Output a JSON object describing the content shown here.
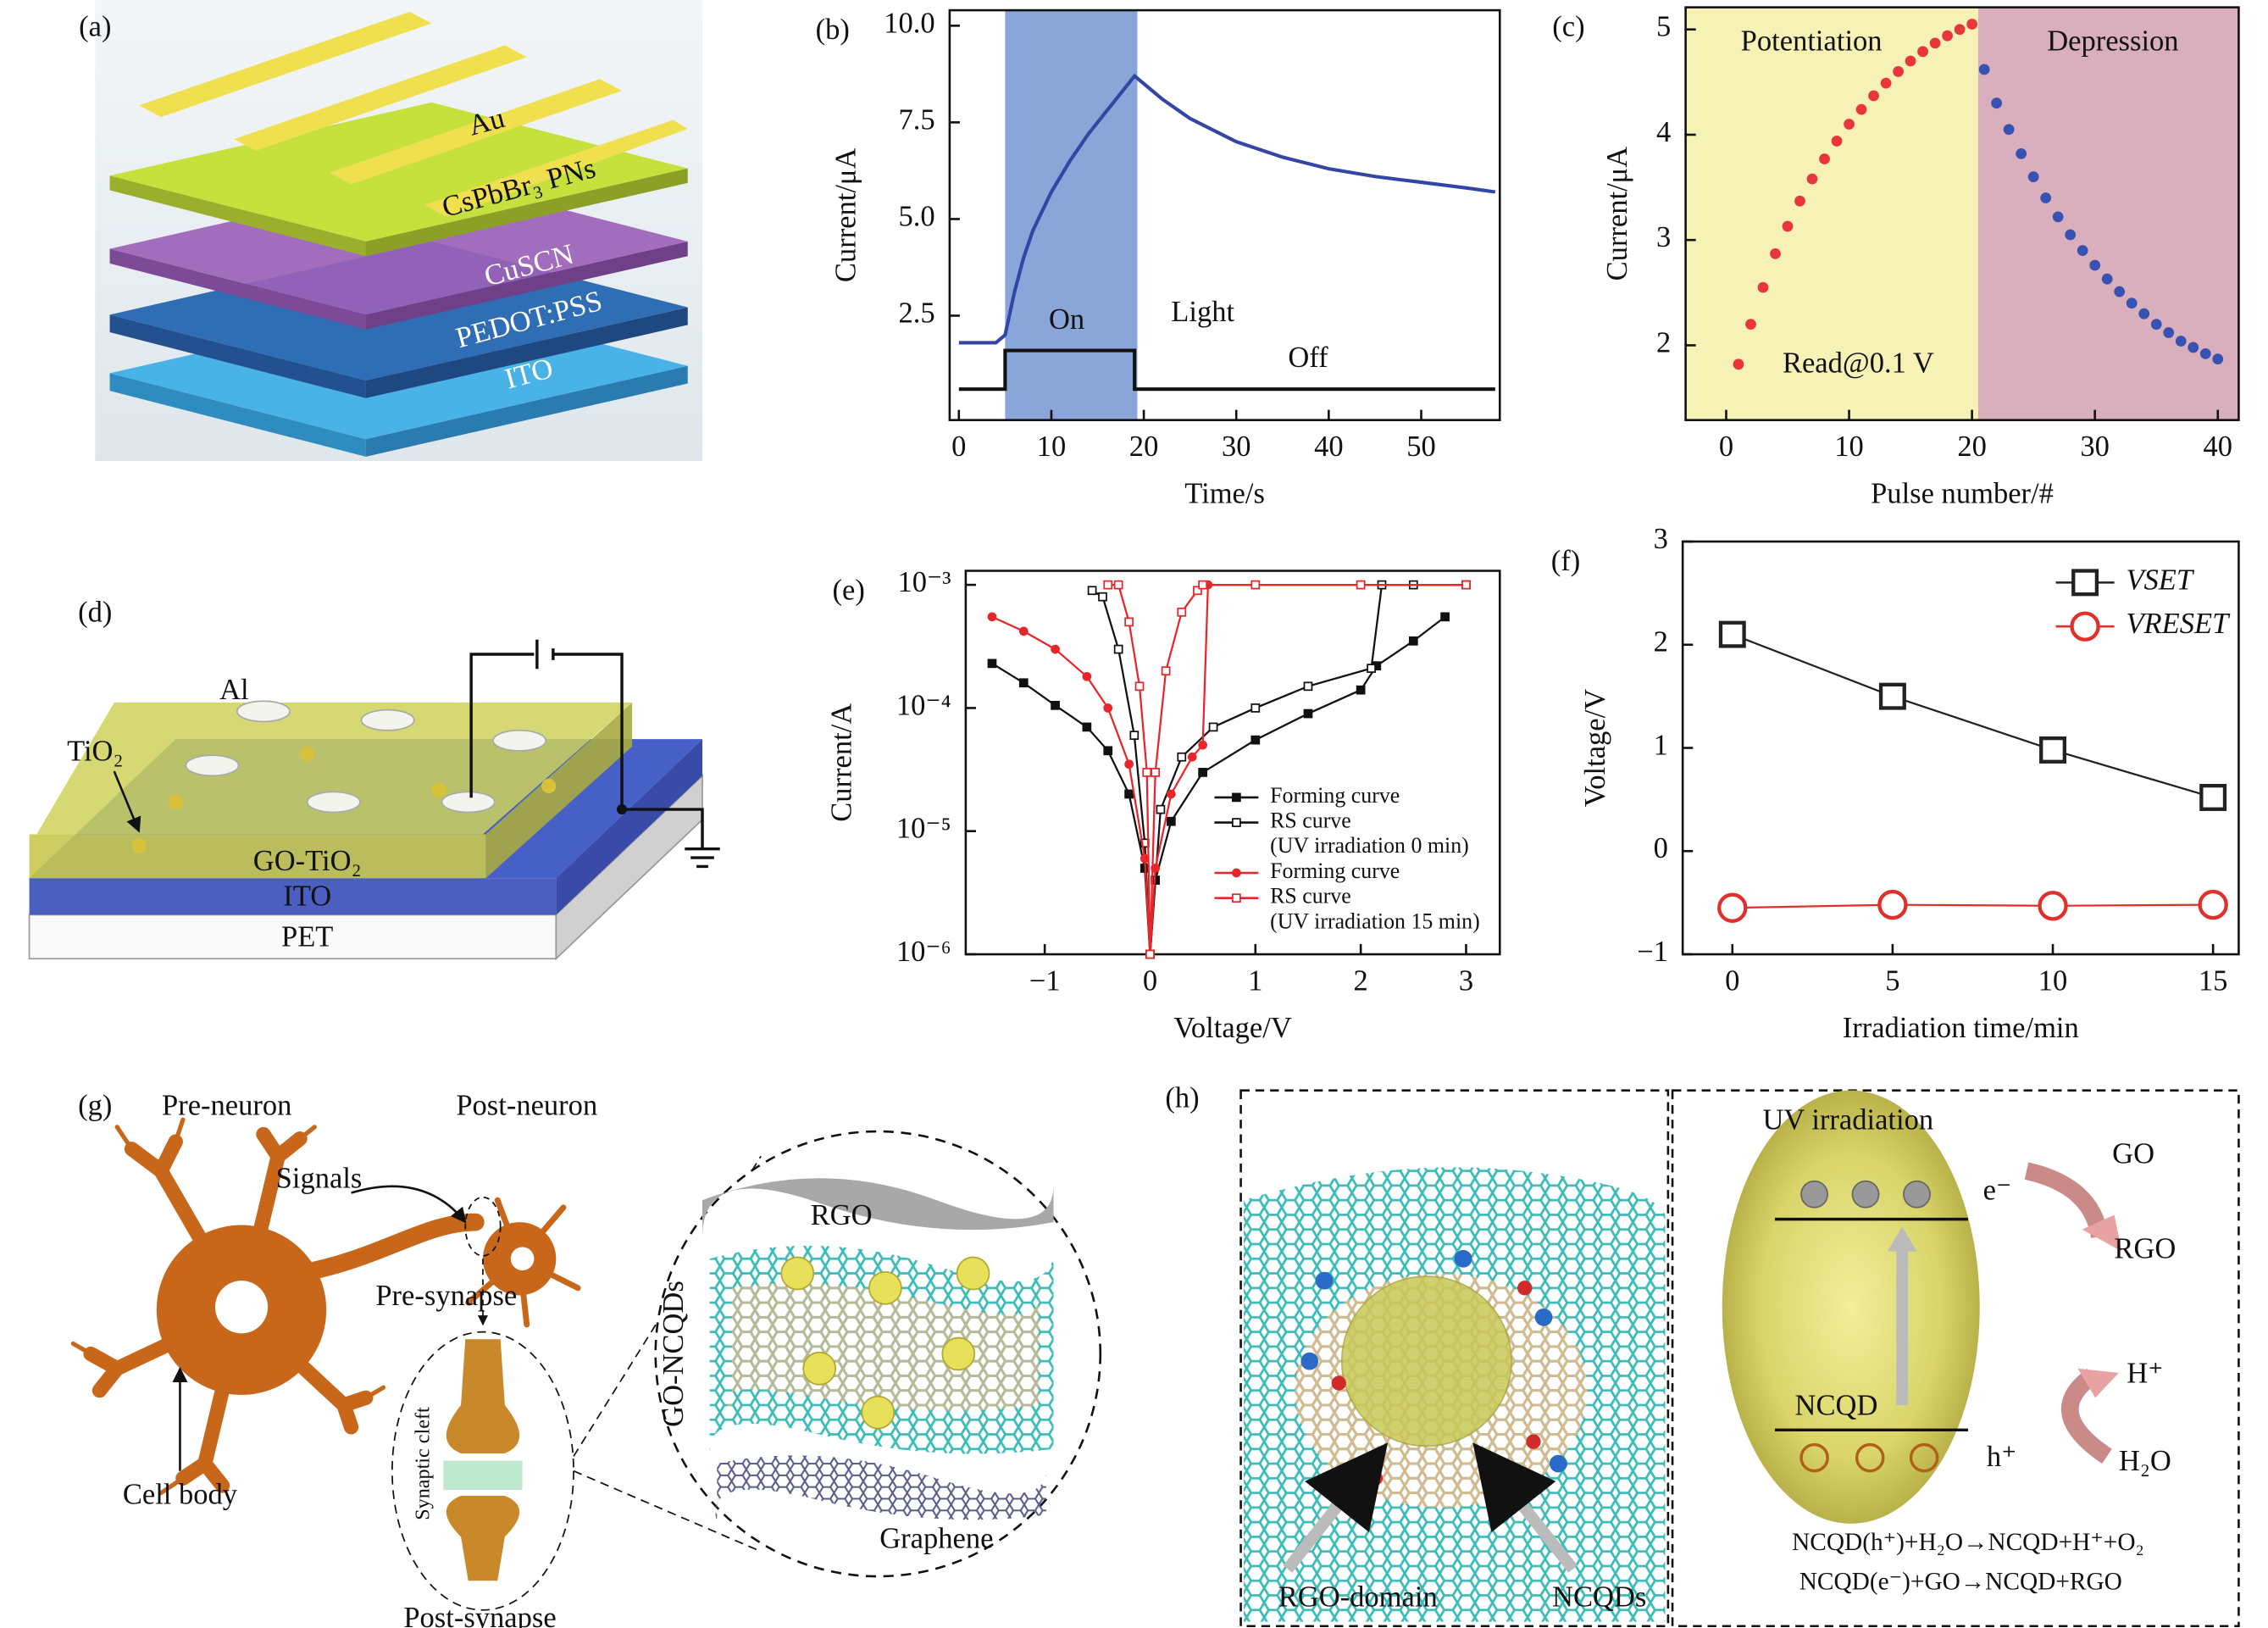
{
  "diagrams": {
    "a": {
      "label": "(a)",
      "layers": [
        "Au",
        "CsPbBr₃ PNs",
        "CuSCN",
        "PEDOT:PSS",
        "ITO"
      ]
    },
    "d": {
      "label": "(d)",
      "texts": [
        "Al",
        "TiO₂",
        "GO-TiO₂",
        "ITO",
        "PET"
      ]
    },
    "g": {
      "label": "(g)",
      "texts": [
        "Pre-neuron",
        "Post-neuron",
        "Signals",
        "Pre-synapse",
        "Synaptic cleft",
        "Cell body",
        "Post-synapse",
        "RGO",
        "GO-NCQDs",
        "Graphene"
      ]
    },
    "h": {
      "label": "(h)",
      "texts": [
        "UV irradiation",
        "GO",
        "e⁻",
        "RGO",
        "H⁺",
        "NCQD",
        "h⁺",
        "H₂O",
        "NCQD(h⁺)+H₂O→NCQD+H⁺+O₂",
        "NCQD(e⁻)+GO→NCQD+RGO",
        "RGO-domain",
        "NCQDs"
      ]
    }
  },
  "chart_data": [
    {
      "label": "(b)",
      "type": "line",
      "xlabel": "Time/s",
      "ylabel": "Current/μA",
      "xlim": [
        -1,
        58.5
      ],
      "ylim": [
        -0.2,
        10.4
      ],
      "xticks": [
        0,
        10,
        20,
        30,
        40,
        50
      ],
      "yticks": [
        2.5,
        {
          "value": 5,
          "label": "5.0"
        },
        7.5,
        {
          "value": 10,
          "label": "10.0"
        }
      ],
      "shades": [
        {
          "from": 5,
          "to": 19.3,
          "color": "#8aa6d8"
        }
      ],
      "annotations": [
        "On",
        "Light",
        "Off"
      ],
      "series": [
        {
          "color": "#3346a6",
          "x": [
            0,
            2,
            4,
            5,
            6,
            7,
            8,
            10,
            12,
            14,
            16,
            18,
            19,
            20,
            22,
            25,
            30,
            35,
            40,
            45,
            50,
            55,
            58
          ],
          "values": [
            1.8,
            1.8,
            1.8,
            2.0,
            3.1,
            4.0,
            4.7,
            5.7,
            6.5,
            7.2,
            7.8,
            8.4,
            8.7,
            8.5,
            8.1,
            7.6,
            7.0,
            6.6,
            6.3,
            6.1,
            5.95,
            5.8,
            5.7
          ]
        },
        {
          "color": "#111111",
          "x": [
            0,
            5,
            5,
            19,
            19,
            58
          ],
          "values": [
            0.6,
            0.6,
            1.6,
            1.6,
            0.6,
            0.6
          ]
        }
      ]
    },
    {
      "label": "(c)",
      "type": "scatter",
      "xlabel": "Pulse number/#",
      "ylabel": "Current/μA",
      "xlim": [
        -3.3,
        41.7
      ],
      "ylim": [
        1.29,
        5.21
      ],
      "xticks": [
        0,
        10,
        20,
        30,
        40
      ],
      "yticks": [
        2,
        3,
        4,
        5
      ],
      "shades": [
        {
          "from": -3.3,
          "to": 20.5,
          "color": "#f6f2b6"
        },
        {
          "from": 20.5,
          "to": 41.7,
          "color": "#d9aebd"
        }
      ],
      "annotations": [
        "Potentiation",
        "Depression",
        "Read@0.1 V"
      ],
      "series": [
        {
          "color": "#e8363a",
          "marker": "circle",
          "marker_fill": "filled",
          "x": [
            1,
            2,
            3,
            4,
            5,
            6,
            7,
            8,
            9,
            10,
            11,
            12,
            13,
            14,
            15,
            16,
            17,
            18,
            19,
            20
          ],
          "values": [
            1.82,
            2.2,
            2.55,
            2.87,
            3.13,
            3.37,
            3.58,
            3.77,
            3.94,
            4.1,
            4.24,
            4.37,
            4.49,
            4.6,
            4.7,
            4.79,
            4.87,
            4.94,
            5.0,
            5.05
          ]
        },
        {
          "color": "#3752b0",
          "marker": "circle",
          "marker_fill": "filled",
          "x": [
            21,
            22,
            23,
            24,
            25,
            26,
            27,
            28,
            29,
            30,
            31,
            32,
            33,
            34,
            35,
            36,
            37,
            38,
            39,
            40
          ],
          "values": [
            4.62,
            4.3,
            4.05,
            3.82,
            3.6,
            3.4,
            3.22,
            3.05,
            2.9,
            2.76,
            2.63,
            2.51,
            2.4,
            2.3,
            2.2,
            2.12,
            2.04,
            1.98,
            1.92,
            1.87
          ]
        }
      ]
    },
    {
      "label": "(e)",
      "type": "line",
      "ylog": true,
      "xlabel": "Voltage/V",
      "ylabel": "Current/A",
      "xlim": [
        -1.75,
        3.32
      ],
      "ylim": [
        1e-06,
        0.0013
      ],
      "xticks": [
        {
          "value": -1,
          "label": "−1"
        },
        0,
        1,
        2,
        3
      ],
      "yticks": [
        {
          "value": 1e-06,
          "label": "10⁻⁶"
        },
        {
          "value": 1e-05,
          "label": "10⁻⁵"
        },
        {
          "value": 0.0001,
          "label": "10⁻⁴"
        },
        {
          "value": 0.001,
          "label": "10⁻³"
        }
      ],
      "legend": "lower right",
      "legend_notes": [
        "(UV irradiation 0 min)",
        "(UV irradiation 15 min)"
      ],
      "series": [
        {
          "name": "Forming curve",
          "color": "#111111",
          "marker": "square",
          "marker_fill": "filled",
          "x": [
            -1.5,
            -1.2,
            -0.9,
            -0.6,
            -0.4,
            -0.2,
            -0.05,
            0,
            0.05,
            0.2,
            0.5,
            1,
            1.5,
            2,
            2.15,
            2.5,
            2.8
          ],
          "values": [
            0.00023,
            0.00016,
            0.000105,
            7e-05,
            4.5e-05,
            2e-05,
            5e-06,
            1e-06,
            4e-06,
            1.2e-05,
            3e-05,
            5.5e-05,
            9e-05,
            0.00014,
            0.00022,
            0.00035,
            0.00055
          ]
        },
        {
          "name": "RS curve",
          "color": "#111111",
          "marker": "square",
          "marker_fill": "open",
          "x": [
            -0.55,
            -0.45,
            -0.3,
            -0.15,
            -0.05,
            0,
            0.1,
            0.3,
            0.6,
            1,
            1.5,
            2.1,
            2.2,
            2.5,
            3
          ],
          "values": [
            0.0009,
            0.0008,
            0.0003,
            6e-05,
            8e-06,
            1e-06,
            1.5e-05,
            4e-05,
            7e-05,
            0.0001,
            0.00015,
            0.00021,
            0.001,
            0.001,
            0.001
          ]
        },
        {
          "name": "Forming curve",
          "color": "#e8262a",
          "marker": "circle",
          "marker_fill": "filled",
          "x": [
            -1.5,
            -1.2,
            -0.9,
            -0.6,
            -0.4,
            -0.2,
            -0.05,
            0,
            0.05,
            0.2,
            0.4,
            0.5,
            0.55,
            1,
            2,
            3
          ],
          "values": [
            0.00055,
            0.00042,
            0.0003,
            0.00018,
            0.0001,
            3.5e-05,
            6e-06,
            1e-06,
            5e-06,
            2e-05,
            4e-05,
            5e-05,
            0.001,
            0.001,
            0.001,
            0.001
          ]
        },
        {
          "name": "RS curve",
          "color": "#e8262a",
          "marker": "square",
          "marker_fill": "open",
          "x": [
            -0.4,
            -0.3,
            -0.2,
            -0.1,
            -0.03,
            0,
            0.05,
            0.15,
            0.3,
            0.45,
            0.5,
            1,
            2,
            3
          ],
          "values": [
            0.001,
            0.001,
            0.0005,
            0.00015,
            3e-05,
            1e-06,
            3e-05,
            0.0002,
            0.0006,
            0.0009,
            0.001,
            0.001,
            0.001,
            0.001
          ]
        }
      ]
    },
    {
      "label": "(f)",
      "type": "line",
      "xlabel": "Irradiation time/min",
      "ylabel": "Voltage/V",
      "xlim": [
        -1.55,
        15.8
      ],
      "ylim": [
        -1,
        3
      ],
      "xticks": [
        0,
        5,
        10,
        15
      ],
      "yticks": [
        {
          "value": -1,
          "label": "−1"
        },
        0,
        1,
        2,
        3
      ],
      "legend": "upper right",
      "series": [
        {
          "name": "VSET",
          "color": "#222222",
          "marker": "square",
          "marker_fill": "open",
          "x": [
            0,
            5,
            10,
            15
          ],
          "values": [
            2.1,
            1.5,
            0.98,
            0.52
          ]
        },
        {
          "name": "VRESET",
          "color": "#e0302c",
          "marker": "circle",
          "marker_fill": "open",
          "x": [
            0,
            5,
            10,
            15
          ],
          "values": [
            -0.55,
            -0.52,
            -0.53,
            -0.52
          ]
        }
      ]
    }
  ]
}
